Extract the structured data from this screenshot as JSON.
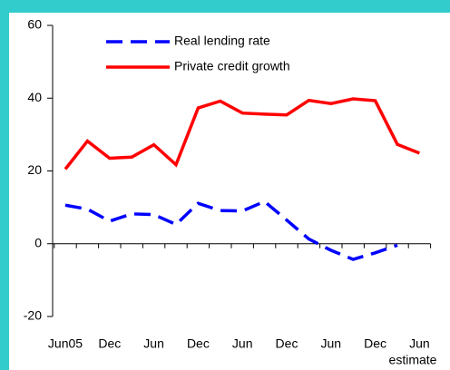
{
  "chart_data": {
    "type": "line",
    "categories": [
      "Jun05",
      null,
      "Dec",
      null,
      "Jun",
      null,
      "Dec",
      null,
      "Jun",
      null,
      "Dec",
      null,
      "Jun",
      null,
      "Dec",
      null,
      "Jun"
    ],
    "series": [
      {
        "name": "Real lending rate",
        "color": "#0000ff",
        "dashed": true,
        "values": [
          10.6,
          9.5,
          6.2,
          8.2,
          8.0,
          5.3,
          11.1,
          9.1,
          9.0,
          11.6,
          6.5,
          1.3,
          -1.8,
          -4.3,
          -2.5,
          -0.4,
          null
        ]
      },
      {
        "name": "Private credit growth",
        "color": "#ff0000",
        "dashed": false,
        "values": [
          20.5,
          28.2,
          23.5,
          23.8,
          27.2,
          21.7,
          37.3,
          39.2,
          35.9,
          35.6,
          35.4,
          39.4,
          38.5,
          39.8,
          39.3,
          27.3,
          24.9
        ]
      }
    ],
    "annotation": "estimate",
    "ylim": [
      -20,
      60
    ],
    "yticks": [
      -20,
      0,
      20,
      40,
      60
    ],
    "grid": false
  }
}
